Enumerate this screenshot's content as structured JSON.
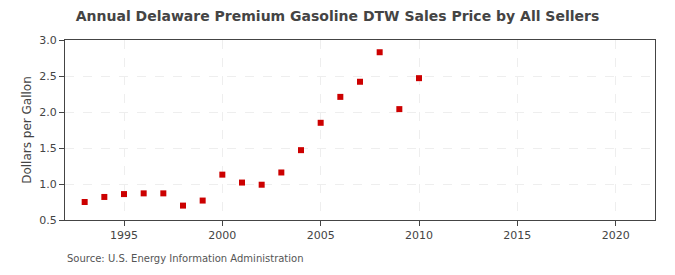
{
  "chart_data": {
    "type": "scatter",
    "title": "Annual Delaware Premium Gasoline DTW Sales Price by All Sellers",
    "y_label": "Dollars per Gallon",
    "annotations": [
      "Source: U.S. Energy Information Administration"
    ],
    "x": [
      1993,
      1994,
      1995,
      1996,
      1997,
      1998,
      1999,
      2000,
      2001,
      2002,
      2003,
      2004,
      2005,
      2006,
      2007,
      2008,
      2009,
      2010
    ],
    "values": [
      0.75,
      0.82,
      0.86,
      0.87,
      0.87,
      0.7,
      0.77,
      1.13,
      1.02,
      0.99,
      1.16,
      1.47,
      1.85,
      2.21,
      2.42,
      2.83,
      2.04,
      2.47
    ],
    "color": "#cc0000",
    "marker": "square",
    "xlim": [
      1992,
      2022
    ],
    "ylim": [
      0.5,
      3.0
    ],
    "xticks": [
      1995,
      2000,
      2005,
      2010,
      2015,
      2020
    ],
    "yticks": [
      0.5,
      {
        "value": 1.0,
        "label": "1.0"
      },
      1.5,
      {
        "value": 2.0,
        "label": "2.0"
      },
      2.5,
      {
        "value": 3.0,
        "label": "3.0"
      }
    ],
    "grid": true
  }
}
